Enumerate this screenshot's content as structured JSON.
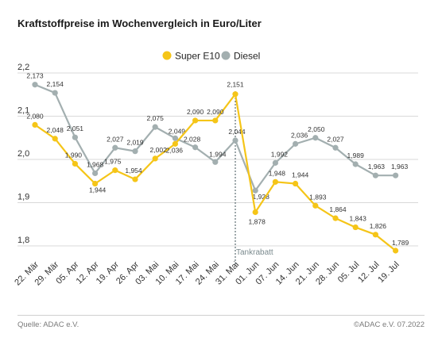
{
  "chart_data": {
    "type": "line",
    "title": "Kraftstoffpreise im Wochenvergleich in Euro/Liter",
    "categories": [
      "22. Mär",
      "29. Mär",
      "05. Apr",
      "12. Apr",
      "19. Apr",
      "26. Apr",
      "03. Mai",
      "10. Mai",
      "17. Mai",
      "24. Mai",
      "31. Mai",
      "01. Jun",
      "07. Jun",
      "14. Jun",
      "21. Jun",
      "28. Jun",
      "05. Jul",
      "12. Jul",
      "19. Jul"
    ],
    "ylim": [
      1.75,
      2.2
    ],
    "yticks": [
      "2,2",
      "2,1",
      "2,0",
      "1,9",
      "1,8"
    ],
    "ytick_values": [
      2.2,
      2.1,
      2.0,
      1.9,
      1.8
    ],
    "legend_position": "top",
    "grid": true,
    "series": [
      {
        "name": "Super E10",
        "color": "#f5c518",
        "values": [
          2.08,
          2.048,
          1.99,
          1.944,
          1.975,
          1.954,
          2.002,
          2.036,
          2.09,
          2.09,
          2.151,
          1.878,
          1.948,
          1.944,
          1.893,
          1.864,
          1.843,
          1.826,
          1.789
        ],
        "labels": [
          "2,080",
          "2,048",
          "1,990",
          "1,944",
          "1,975",
          "1,954",
          "2,002",
          "2,036",
          "2,090",
          "2,090",
          "2,151",
          "1,878",
          "1,948",
          "1,944",
          "1,893",
          "1,864",
          "1,843",
          "1,826",
          "1,789"
        ]
      },
      {
        "name": "Diesel",
        "color": "#a3afb0",
        "values": [
          2.173,
          2.154,
          2.051,
          1.968,
          2.027,
          2.019,
          2.075,
          2.049,
          2.028,
          1.994,
          2.044,
          1.928,
          1.992,
          2.036,
          2.05,
          2.027,
          1.989,
          1.963,
          1.963
        ],
        "labels": [
          "2,173",
          "2,154",
          "2,051",
          "1,968",
          "2,027",
          "2,019",
          "2,075",
          "2,049",
          "2,028",
          "1,994",
          "2,044",
          "1,928",
          "1,992",
          "2,036",
          "2,050",
          "2,027",
          "1,989",
          "1,963",
          "1,963"
        ]
      }
    ],
    "annotations": [
      {
        "text": "Tankrabatt",
        "category": "31. Mai"
      }
    ]
  },
  "footer": {
    "source": "Quelle: ADAC e.V.",
    "copyright": "©ADAC e.V.  07.2022"
  }
}
